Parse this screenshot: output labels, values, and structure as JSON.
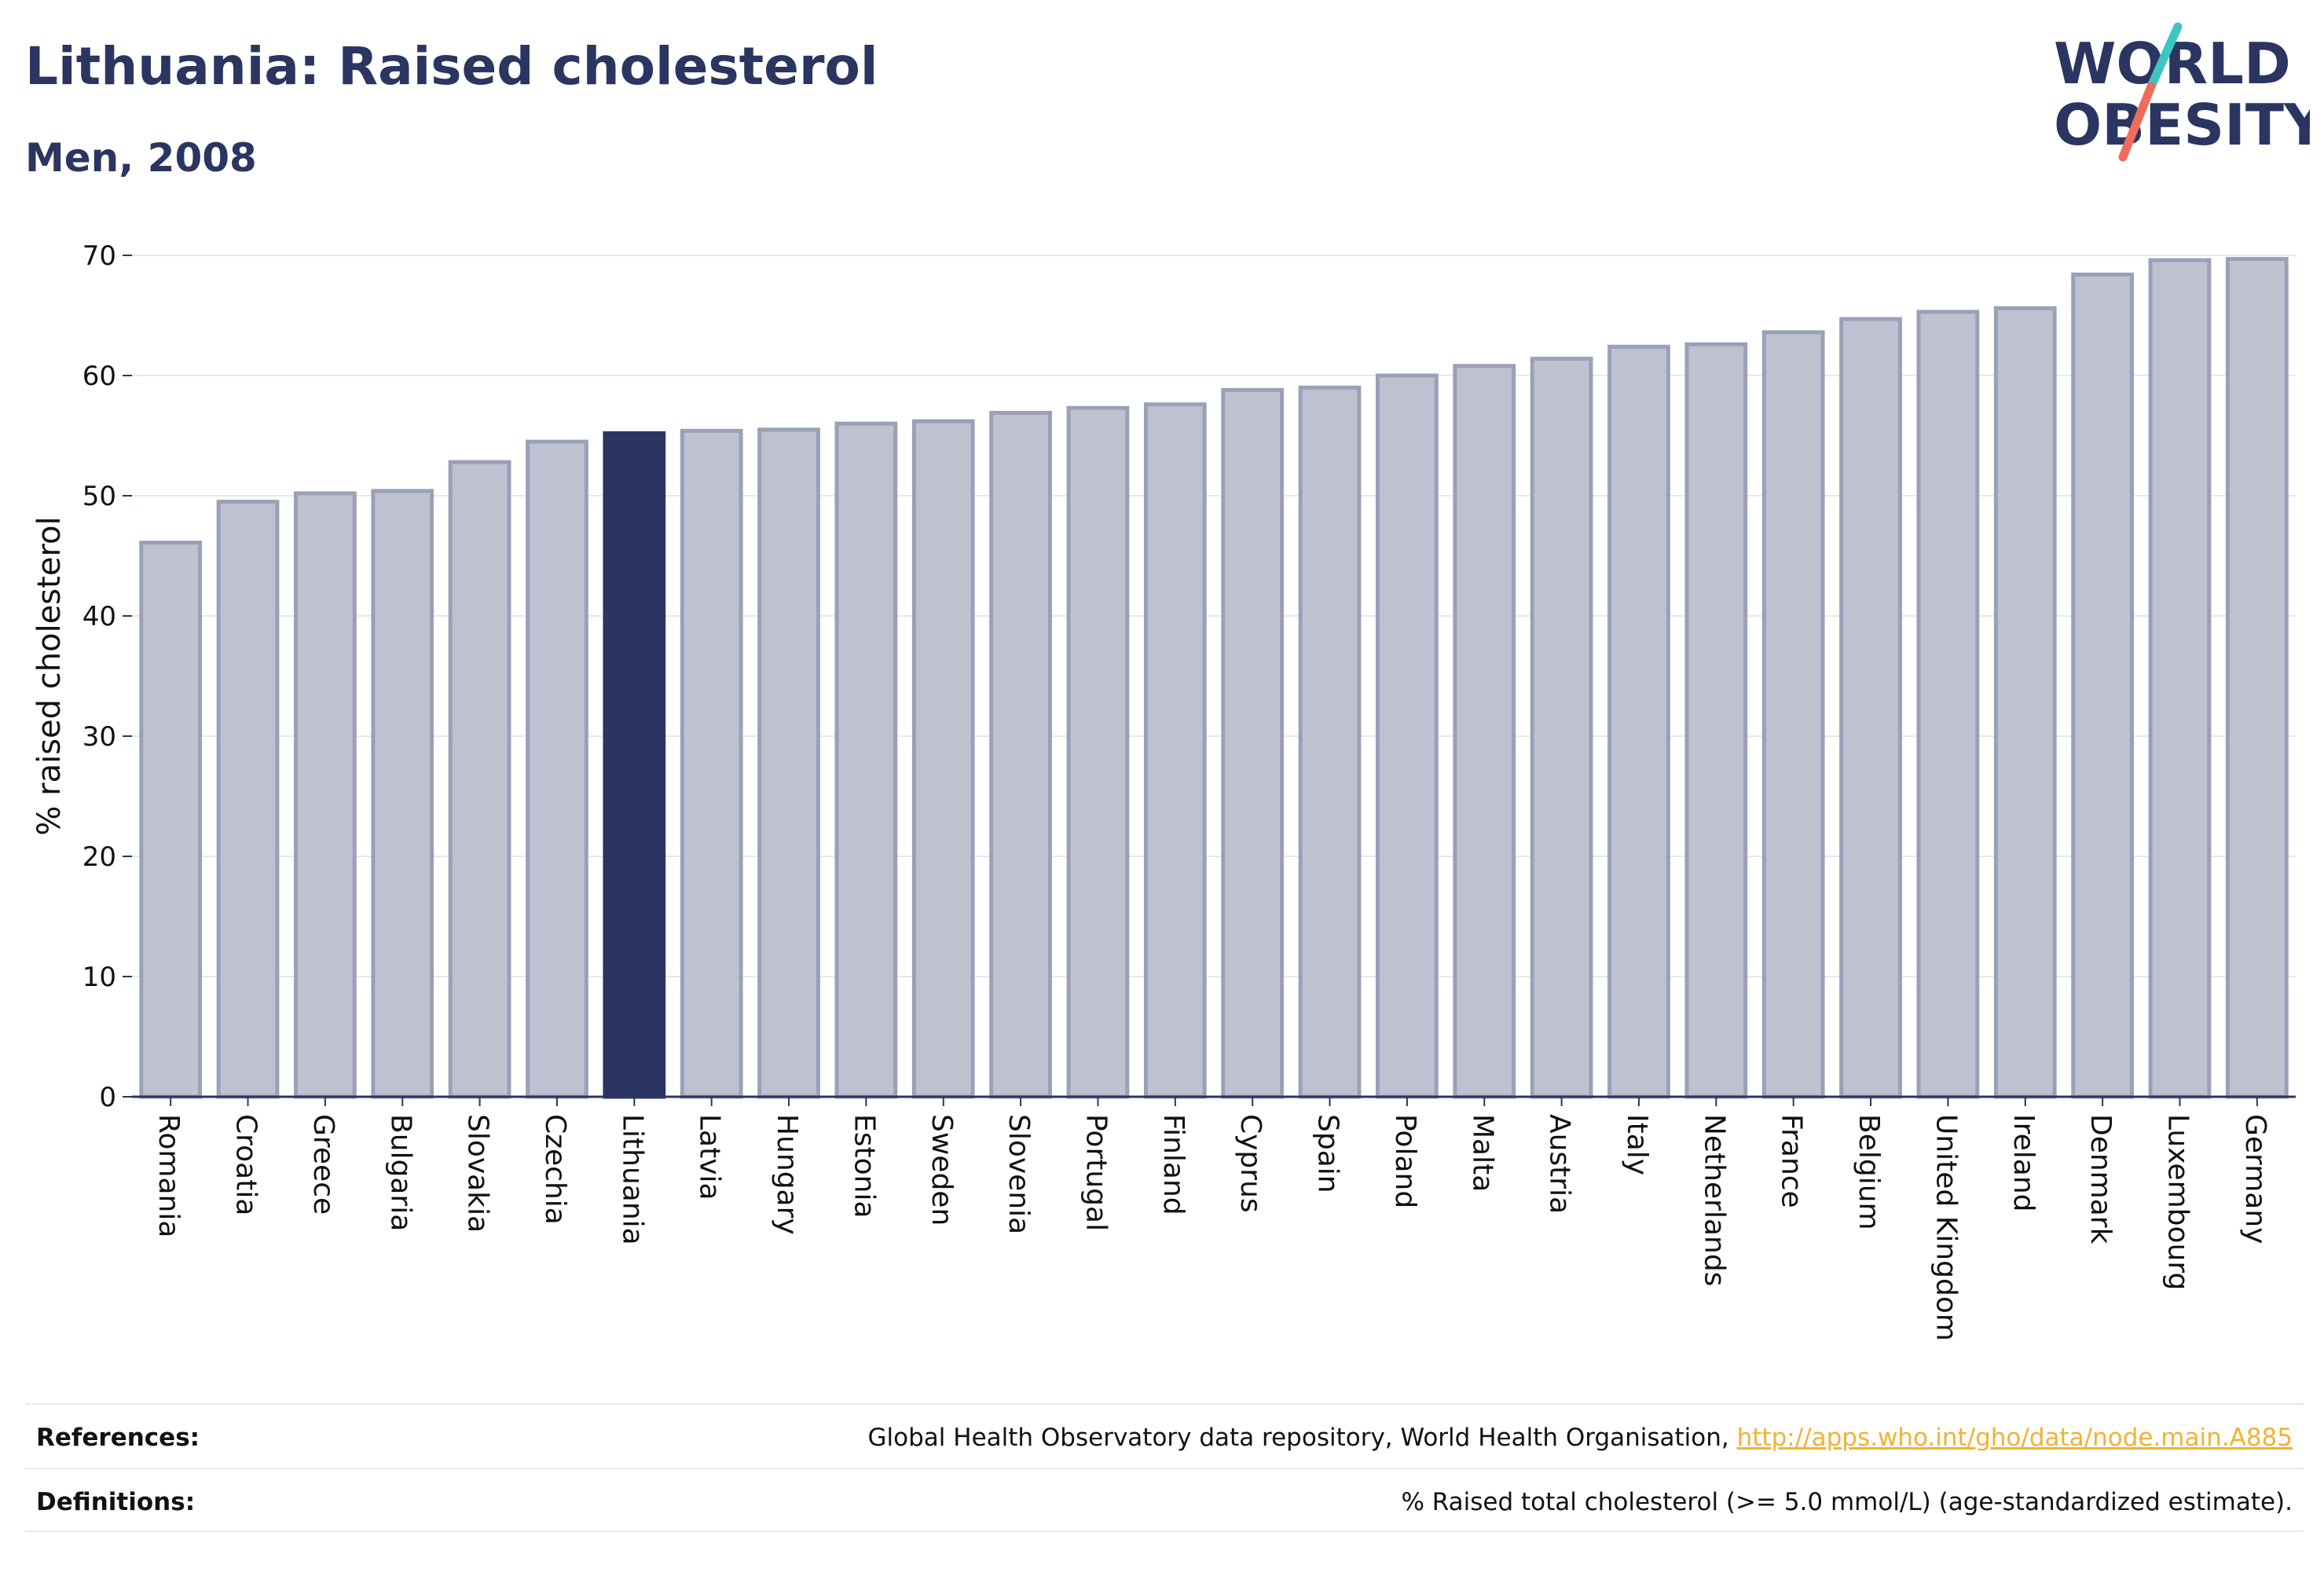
{
  "header": {
    "title": "Lithuania: Raised cholesterol",
    "subtitle": "Men, 2008"
  },
  "logo": {
    "line1": "WORLD",
    "line2": "OBESITY",
    "accent_teal": "#3cc6c3",
    "accent_coral": "#f06b5b"
  },
  "colors": {
    "bar_default": "#bec2d0",
    "bar_border": "#9aa0b8",
    "bar_highlight": "#2b3561",
    "grid": "#e6e8ef",
    "axis": "#2b3561"
  },
  "chart_data": {
    "type": "bar",
    "title": "Lithuania: Raised cholesterol",
    "subtitle": "Men, 2008",
    "xlabel": "",
    "ylabel": "% raised cholesterol",
    "ylim": [
      0,
      70
    ],
    "yticks": [
      0,
      10,
      20,
      30,
      40,
      50,
      60,
      70
    ],
    "grid": true,
    "highlight": "Lithuania",
    "categories": [
      "Romania",
      "Croatia",
      "Greece",
      "Bulgaria",
      "Slovakia",
      "Czechia",
      "Lithuania",
      "Latvia",
      "Hungary",
      "Estonia",
      "Sweden",
      "Slovenia",
      "Portugal",
      "Finland",
      "Cyprus",
      "Spain",
      "Poland",
      "Malta",
      "Austria",
      "Italy",
      "Netherlands",
      "France",
      "Belgium",
      "United Kingdom",
      "Ireland",
      "Denmark",
      "Luxembourg",
      "Germany"
    ],
    "values": [
      46.1,
      49.5,
      50.2,
      50.4,
      52.8,
      54.5,
      55.2,
      55.4,
      55.5,
      56.0,
      56.2,
      56.9,
      57.3,
      57.6,
      58.8,
      59.0,
      60.0,
      60.8,
      61.4,
      62.4,
      62.6,
      63.6,
      64.7,
      65.3,
      65.6,
      68.4,
      69.6,
      69.7
    ]
  },
  "footer": {
    "references_label": "References:",
    "references_text": "Global Health Observatory data repository, World Health Organisation, ",
    "references_link": "http://apps.who.int/gho/data/node.main.A885",
    "definitions_label": "Definitions:",
    "definitions_text": "% Raised total cholesterol (>= 5.0 mmol/L) (age-standardized estimate)."
  }
}
